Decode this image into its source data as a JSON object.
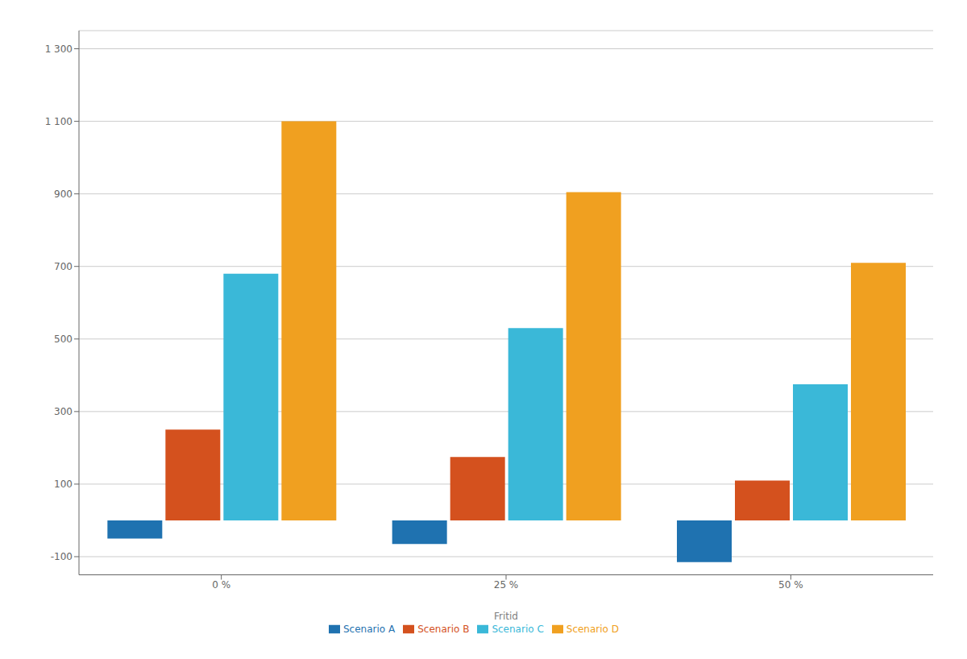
{
  "chart_data": {
    "type": "bar",
    "categories": [
      "0 %",
      "25 %",
      "50 %"
    ],
    "series": [
      {
        "name": "Scenario A",
        "color": "#1f72b0",
        "values": [
          -50,
          -65,
          -115
        ]
      },
      {
        "name": "Scenario B",
        "color": "#d4511e",
        "values": [
          250,
          175,
          110
        ]
      },
      {
        "name": "Scenario C",
        "color": "#3ab8d8",
        "values": [
          680,
          530,
          375
        ]
      },
      {
        "name": "Scenario D",
        "color": "#f0a020",
        "values": [
          1100,
          905,
          710
        ]
      }
    ],
    "xlabel": "Fritid",
    "ylim": [
      -150,
      1350
    ],
    "yticks": [
      -100,
      100,
      300,
      500,
      700,
      900,
      {
        "value": 1100,
        "label": "1 100"
      },
      {
        "value": 1300,
        "label": "1 300"
      }
    ],
    "grid": true,
    "legend": "bottom"
  }
}
